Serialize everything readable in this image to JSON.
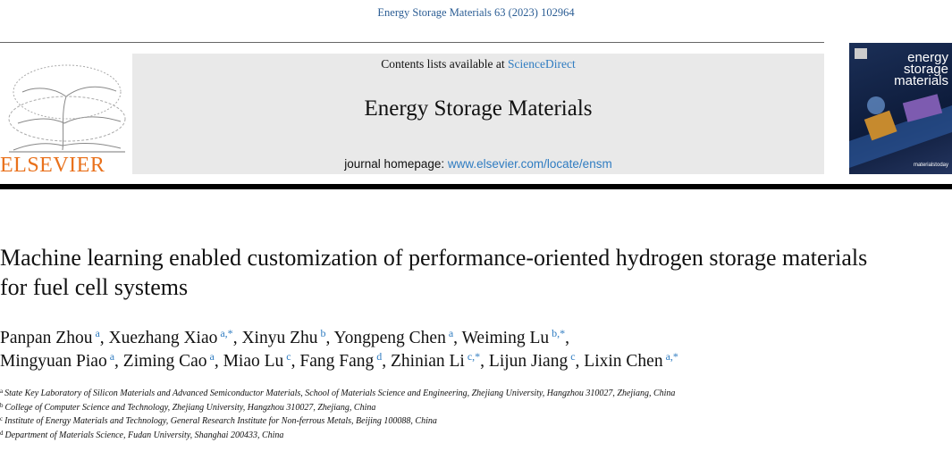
{
  "header": {
    "citation": "Energy Storage Materials 63 (2023) 102964",
    "contents_prefix": "Contents lists available at ",
    "contents_link": "ScienceDirect",
    "journal_title": "Energy Storage Materials",
    "homepage_prefix": "journal homepage: ",
    "homepage_url": "www.elsevier.com/locate/ensm",
    "publisher": "ELSEVIER",
    "cover": {
      "lines": [
        "energy",
        "storage",
        "materials"
      ],
      "footer": "materialstoday"
    }
  },
  "article": {
    "title": "Machine learning enabled customization of performance-oriented hydrogen storage materials for fuel cell systems",
    "author_lines": [
      [
        {
          "name": "Panpan Zhou",
          "sup": "a",
          "sep": ", "
        },
        {
          "name": "Xuezhang Xiao",
          "sup": "a,*",
          "sep": ", "
        },
        {
          "name": "Xinyu Zhu",
          "sup": "b",
          "sep": ", "
        },
        {
          "name": "Yongpeng Chen",
          "sup": "a",
          "sep": ", "
        },
        {
          "name": "Weiming Lu",
          "sup": "b,*",
          "sep": ","
        }
      ],
      [
        {
          "name": "Mingyuan Piao",
          "sup": "a",
          "sep": ", "
        },
        {
          "name": "Ziming Cao",
          "sup": "a",
          "sep": ", "
        },
        {
          "name": "Miao Lu",
          "sup": "c",
          "sep": ", "
        },
        {
          "name": "Fang  Fang",
          "sup": "d",
          "sep": ", "
        },
        {
          "name": "Zhinian Li",
          "sup": "c,*",
          "sep": ", "
        },
        {
          "name": "Lijun Jiang",
          "sup": "c",
          "sep": ", "
        },
        {
          "name": "Lixin Chen",
          "sup": "a,*"
        }
      ]
    ],
    "affiliations": [
      {
        "label": "a",
        "text": "State Key Laboratory of Silicon Materials and Advanced Semiconductor Materials, School of Materials Science and Engineering, Zhejiang University, Hangzhou 310027, Zhejiang, China"
      },
      {
        "label": "b",
        "text": "College of Computer Science and Technology, Zhejiang University, Hangzhou 310027, Zhejiang, China"
      },
      {
        "label": "c",
        "text": "Institute of Energy Materials and Technology, General Research Institute for Non-ferrous Metals, Beijing 100088, China"
      },
      {
        "label": "d",
        "text": "Department of Materials Science, Fudan University, Shanghai 200433, China"
      }
    ]
  }
}
